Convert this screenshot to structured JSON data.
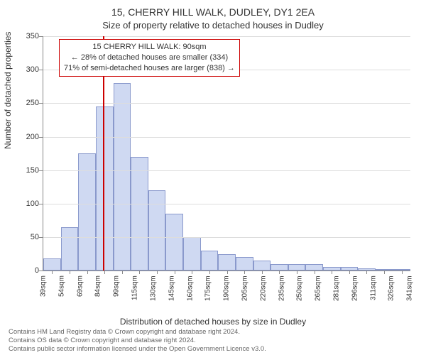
{
  "header": {
    "address": "15, CHERRY HILL WALK, DUDLEY, DY1 2EA",
    "subtitle": "Size of property relative to detached houses in Dudley"
  },
  "chart": {
    "type": "bar",
    "ylabel": "Number of detached properties",
    "xlabel": "Distribution of detached houses by size in Dudley",
    "ymin": 0,
    "ymax": 350,
    "ytick_step": 50,
    "bar_fill": "#cfd9f2",
    "bar_border": "#8a99cc",
    "background": "#ffffff",
    "grid_color": "#dddddd",
    "categories": [
      "39sqm",
      "54sqm",
      "69sqm",
      "84sqm",
      "99sqm",
      "115sqm",
      "130sqm",
      "145sqm",
      "160sqm",
      "175sqm",
      "190sqm",
      "205sqm",
      "220sqm",
      "235sqm",
      "250sqm",
      "265sqm",
      "281sqm",
      "296sqm",
      "311sqm",
      "326sqm",
      "341sqm"
    ],
    "values": [
      18,
      65,
      175,
      245,
      280,
      170,
      120,
      85,
      50,
      30,
      25,
      20,
      15,
      10,
      10,
      10,
      5,
      5,
      3,
      2,
      2
    ],
    "marker": {
      "position_index": 3.4,
      "color": "#cc0000"
    },
    "annotation": {
      "border_color": "#cc0000",
      "line1": "15 CHERRY HILL WALK: 90sqm",
      "line2": "← 28% of detached houses are smaller (334)",
      "line3": "71% of semi-detached houses are larger (838) →"
    }
  },
  "footer": {
    "line1": "Contains HM Land Registry data © Crown copyright and database right 2024.",
    "line2": "Contains OS data © Crown copyright and database right 2024.",
    "line3": "Contains public sector information licensed under the Open Government Licence v3.0."
  }
}
